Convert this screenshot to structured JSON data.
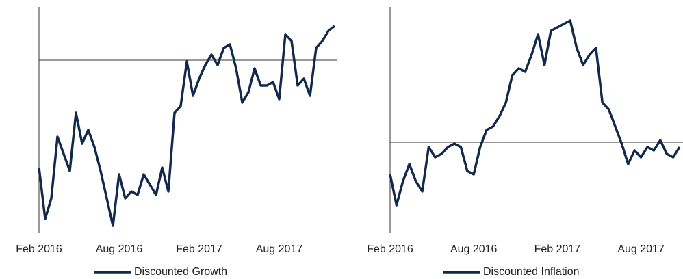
{
  "chart_data": [
    {
      "type": "line",
      "categories": [
        "Feb 2016",
        null,
        null,
        null,
        null,
        null,
        null,
        null,
        null,
        null,
        null,
        null,
        null,
        "Aug 2016",
        null,
        null,
        null,
        null,
        null,
        null,
        null,
        null,
        null,
        null,
        null,
        null,
        "Feb 2017",
        null,
        null,
        null,
        null,
        null,
        null,
        null,
        null,
        null,
        null,
        null,
        null,
        "Aug 2017",
        null,
        null,
        null,
        null,
        null,
        null,
        null,
        null,
        null
      ],
      "series": [
        {
          "name": "Discounted Growth",
          "color": "#13294b",
          "values": [
            -15.7,
            -23.2,
            -20.2,
            -11.2,
            -13.7,
            -16.2,
            -7.7,
            -12.2,
            -10.2,
            -12.7,
            -16.2,
            -20.2,
            -24.2,
            -16.7,
            -20.2,
            -19.2,
            -19.7,
            -16.7,
            -18.2,
            -19.7,
            -15.7,
            -19.2,
            -7.7,
            -6.7,
            -0.2,
            -5.2,
            -2.7,
            -0.7,
            0.8,
            -0.7,
            1.8,
            2.3,
            -1.2,
            -6.2,
            -4.7,
            -1.2,
            -3.7,
            -3.7,
            -3.2,
            -5.7,
            3.8,
            2.8,
            -3.7,
            -2.7,
            -5.2,
            1.8,
            2.8,
            4.3,
            5.0
          ]
        }
      ],
      "ylim": [
        -25.2,
        7.8
      ],
      "reference_line": 0
    },
    {
      "type": "line",
      "categories": [
        "Feb 2016",
        null,
        null,
        null,
        null,
        null,
        null,
        null,
        null,
        null,
        null,
        null,
        null,
        "Aug 2016",
        null,
        null,
        null,
        null,
        null,
        null,
        null,
        null,
        null,
        null,
        null,
        null,
        "Feb 2017",
        null,
        null,
        null,
        null,
        null,
        null,
        null,
        null,
        null,
        null,
        null,
        null,
        "Aug 2017",
        null,
        null,
        null,
        null,
        null,
        null
      ],
      "series": [
        {
          "name": "Discounted Inflation",
          "color": "#13294b",
          "values": [
            -4.7,
            -9.2,
            -5.7,
            -3.2,
            -5.7,
            -7.2,
            -0.7,
            -2.2,
            -1.7,
            -0.7,
            -0.2,
            -0.7,
            -4.2,
            -4.7,
            -0.7,
            1.8,
            2.3,
            3.8,
            5.8,
            9.8,
            10.8,
            10.3,
            12.8,
            15.8,
            11.3,
            16.3,
            16.8,
            17.3,
            17.8,
            13.8,
            11.3,
            12.8,
            13.8,
            5.8,
            4.8,
            2.3,
            -0.2,
            -3.2,
            -1.2,
            -2.2,
            -0.7,
            -1.2,
            0.3,
            -1.7,
            -2.2,
            -0.7
          ]
        }
      ],
      "ylim": [
        -13.2,
        19.8
      ],
      "reference_line": 0
    }
  ]
}
